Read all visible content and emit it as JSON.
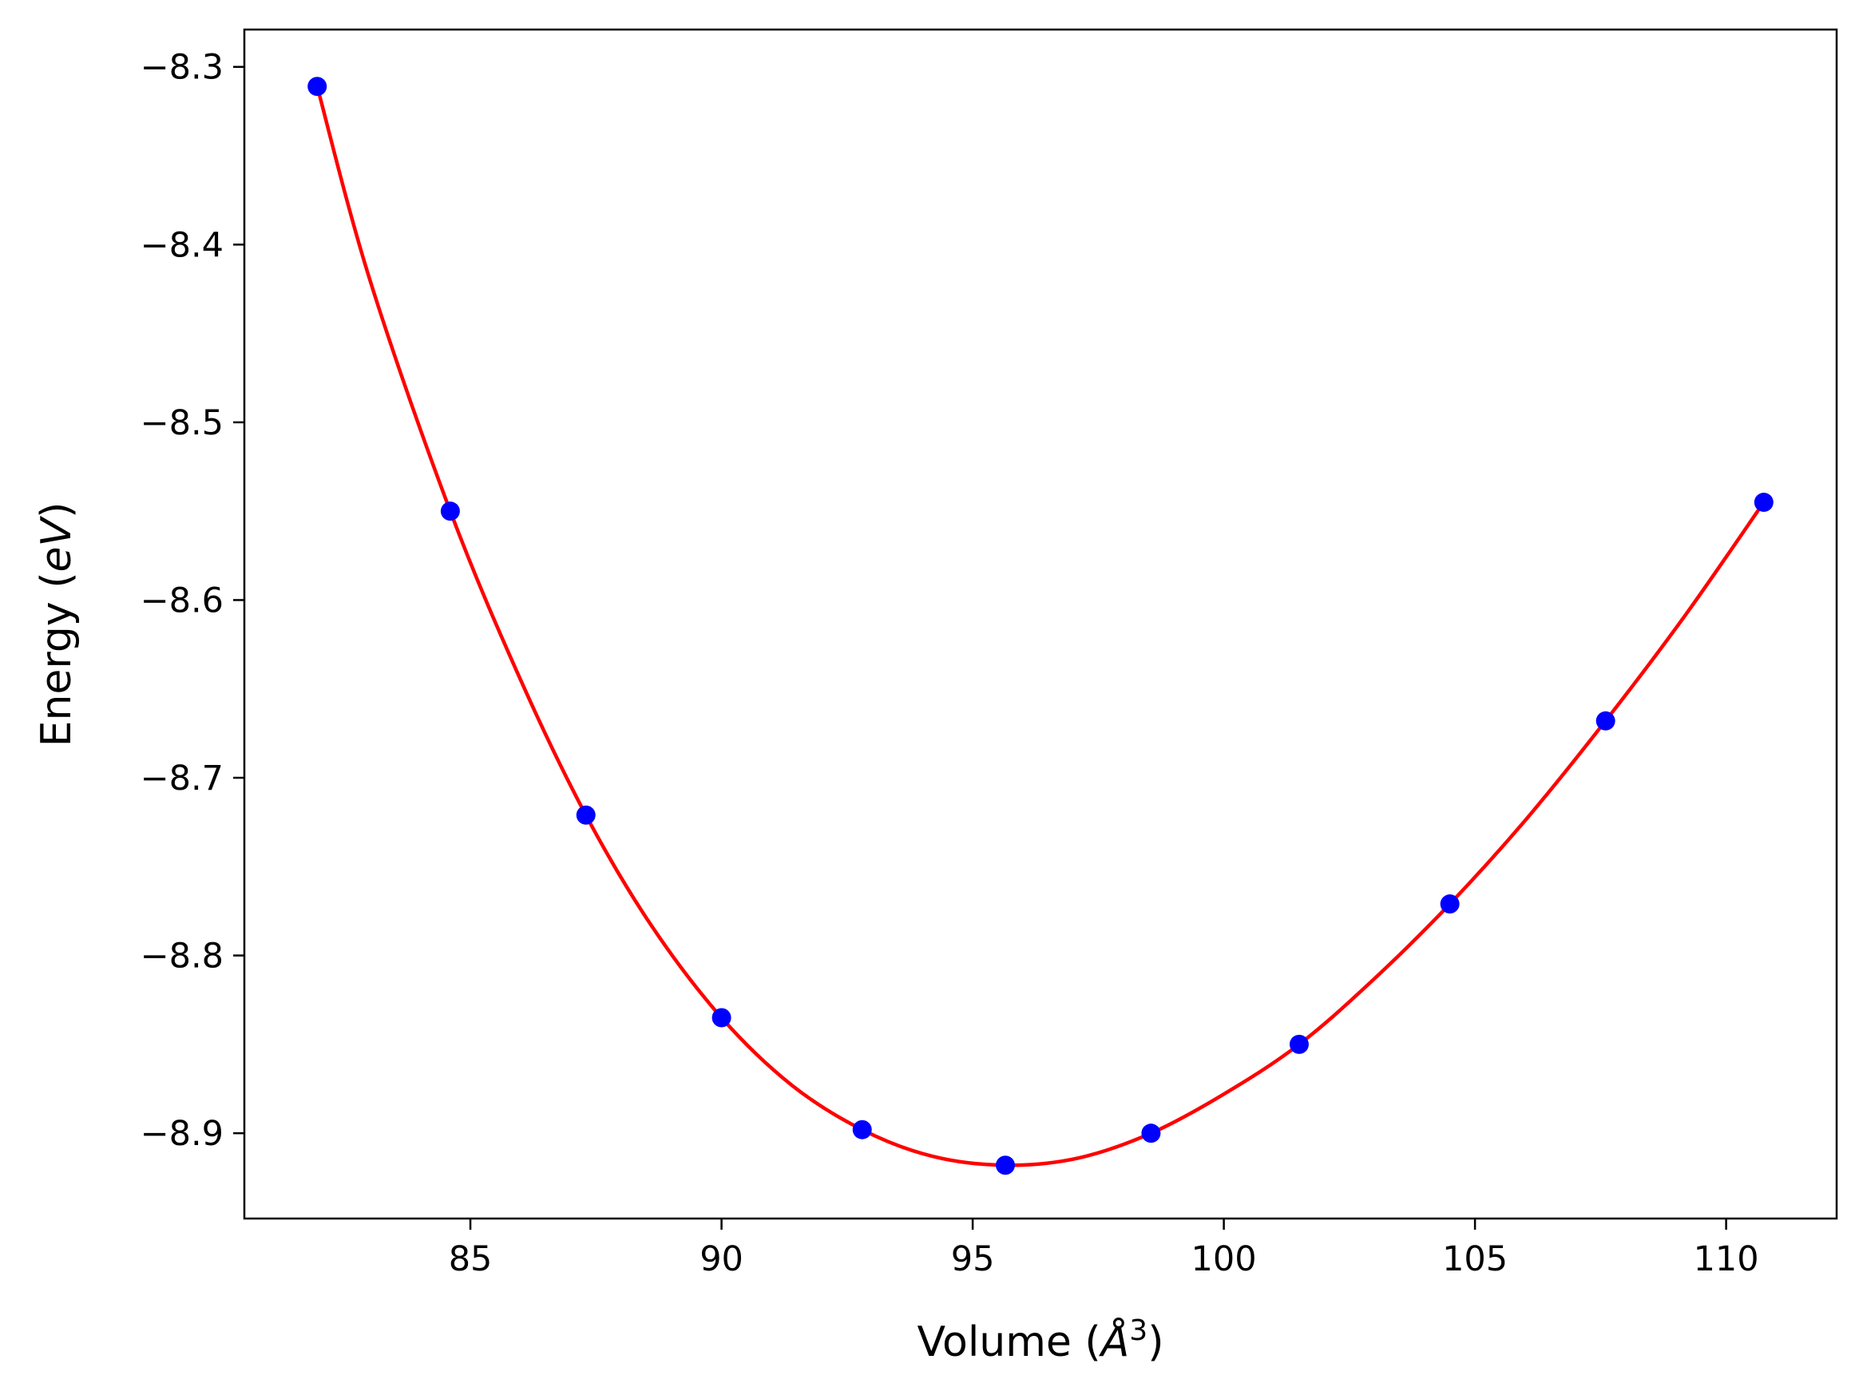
{
  "chart_data": {
    "type": "scatter",
    "xlabel": {
      "prefix": "Volume (",
      "symbol": "Å",
      "superscript": "3",
      "suffix": ")"
    },
    "ylabel": {
      "prefix": "Energy (",
      "unit": "eV",
      "suffix": ")"
    },
    "xlim": [
      80.5,
      112.2
    ],
    "ylim": [
      -8.948,
      -8.279
    ],
    "xticks": [
      {
        "value": 85,
        "label": "85"
      },
      {
        "value": 90,
        "label": "90"
      },
      {
        "value": 95,
        "label": "95"
      },
      {
        "value": 100,
        "label": "100"
      },
      {
        "value": 105,
        "label": "105"
      },
      {
        "value": 110,
        "label": "110"
      }
    ],
    "yticks": [
      {
        "value": -8.9,
        "label": "−8.9"
      },
      {
        "value": -8.8,
        "label": "−8.8"
      },
      {
        "value": -8.7,
        "label": "−8.7"
      },
      {
        "value": -8.6,
        "label": "−8.6"
      },
      {
        "value": -8.5,
        "label": "−8.5"
      },
      {
        "value": -8.4,
        "label": "−8.4"
      },
      {
        "value": -8.3,
        "label": "−8.3"
      }
    ],
    "grid": false,
    "legend": "none",
    "series": [
      {
        "kind": "points",
        "color": "#0000ff",
        "x": [
          81.95,
          84.6,
          87.3,
          90.0,
          92.8,
          95.65,
          98.55,
          101.5,
          104.5,
          107.6,
          110.75
        ],
        "y": [
          -8.311,
          -8.55,
          -8.721,
          -8.835,
          -8.898,
          -8.918,
          -8.9,
          -8.85,
          -8.771,
          -8.668,
          -8.545
        ]
      },
      {
        "kind": "fit-curve",
        "color": "#ff0000",
        "x": [
          81.95,
          83.0,
          84.6,
          86.0,
          87.3,
          88.6,
          90.0,
          91.4,
          92.8,
          94.2,
          95.65,
          97.1,
          98.55,
          100.0,
          101.5,
          103.0,
          104.5,
          106.0,
          107.6,
          109.2,
          110.75
        ],
        "y": [
          -8.311,
          -8.42,
          -8.55,
          -8.645,
          -8.721,
          -8.783,
          -8.835,
          -8.873,
          -8.898,
          -8.913,
          -8.918,
          -8.914,
          -8.9,
          -8.878,
          -8.85,
          -8.813,
          -8.771,
          -8.724,
          -8.668,
          -8.608,
          -8.545
        ]
      }
    ]
  },
  "colors": {
    "frame": "#000000",
    "points": "#0000ff",
    "curve": "#ff0000",
    "background": "#ffffff"
  }
}
